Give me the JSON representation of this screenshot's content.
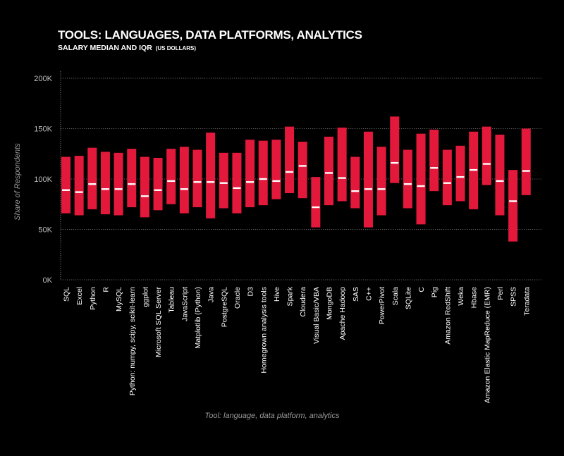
{
  "header": {
    "title": "TOOLS: LANGUAGES, DATA PLATFORMS, ANALYTICS",
    "subtitle": "SALARY MEDIAN AND IQR",
    "subtitle_unit": "(US DOLLARS)"
  },
  "chart_data": {
    "type": "bar",
    "chart_style": "floating range bars (IQR) with median marker",
    "xlabel": "Tool: language, data platform, analytics",
    "ylabel": "Share of Respondents",
    "ylim": [
      0,
      200000
    ],
    "yticks": [
      0,
      50000,
      100000,
      150000,
      200000
    ],
    "yticklabels": [
      "0K",
      "50K",
      "100K",
      "150K",
      "200K"
    ],
    "grid": true,
    "colors": {
      "bar": "#e3193b",
      "median": "#ffffff",
      "grid": "#bdbdbd",
      "background": "#000000"
    },
    "categories": [
      "SQL",
      "Excel",
      "Python",
      "R",
      "MySQL",
      "Python: numpy, scipy, scikit-learn",
      "ggplot",
      "Microsoft SQL Server",
      "Tableau",
      "JavaScript",
      "Matplotlib (Python)",
      "Java",
      "PostgreSQL",
      "Oracle",
      "D3",
      "Homegrown analysis tools",
      "Hive",
      "Spark",
      "Cloudera",
      "Visual Basic/VBA",
      "MongoDB",
      "Apache Hadoop",
      "SAS",
      "C++",
      "PowerPivot",
      "Scala",
      "SQLite",
      "C",
      "Pig",
      "Amazon RedShift",
      "Weka",
      "Hbase",
      "Amazon Elastic MapReduce (EMR)",
      "Perl",
      "SPSS",
      "Teradata"
    ],
    "series": [
      {
        "name": "Q1",
        "values": [
          66000,
          64000,
          70000,
          65000,
          64000,
          72000,
          62000,
          69000,
          75000,
          66000,
          72000,
          61000,
          71000,
          66000,
          72000,
          74000,
          80000,
          86000,
          81000,
          52000,
          74000,
          78000,
          71000,
          52000,
          64000,
          96000,
          71000,
          55000,
          88000,
          74000,
          78000,
          70000,
          94000,
          64000,
          38000,
          84000
        ]
      },
      {
        "name": "Median",
        "values": [
          89000,
          87000,
          95000,
          90000,
          90000,
          95000,
          83000,
          89000,
          98000,
          90000,
          97000,
          97000,
          96000,
          91000,
          97000,
          100000,
          98000,
          107000,
          113000,
          72000,
          106000,
          101000,
          88000,
          90000,
          90000,
          116000,
          95000,
          93000,
          111000,
          96000,
          102000,
          109000,
          115000,
          98000,
          78000,
          108000
        ]
      },
      {
        "name": "Q3",
        "values": [
          122000,
          123000,
          131000,
          127000,
          126000,
          130000,
          122000,
          121000,
          130000,
          132000,
          129000,
          146000,
          126000,
          126000,
          139000,
          138000,
          139000,
          152000,
          137000,
          102000,
          142000,
          151000,
          122000,
          147000,
          132000,
          162000,
          129000,
          145000,
          149000,
          129000,
          133000,
          147000,
          152000,
          144000,
          109000,
          150000
        ]
      }
    ]
  }
}
